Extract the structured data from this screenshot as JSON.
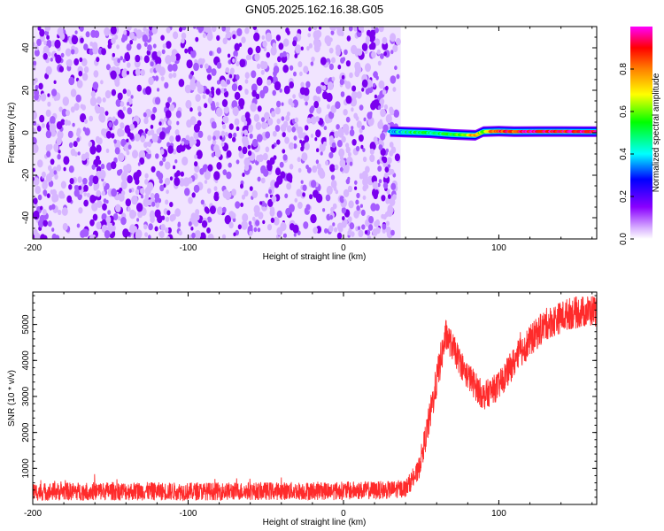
{
  "title": "GN05.2025.162.16.38.G05",
  "chart_data": [
    {
      "type": "heatmap",
      "xlabel": "Height of straight line (km)",
      "ylabel": "Frequency (Hz)",
      "xlim": [
        -200,
        163
      ],
      "ylim": [
        -50,
        50
      ],
      "xticks": [
        -200,
        -100,
        0,
        100
      ],
      "yticks": [
        -40,
        -20,
        0,
        20,
        40
      ],
      "noise_region": {
        "x_range": [
          -200,
          30
        ],
        "y_range": [
          -50,
          50
        ],
        "amplitude_range": [
          0.0,
          0.25
        ]
      },
      "signal_band": {
        "x_range": [
          28,
          163
        ],
        "frequency_hz": 0,
        "points": [
          {
            "x": 30,
            "f": 0.6,
            "amp": 0.35
          },
          {
            "x": 40,
            "f": 0.3,
            "amp": 0.45
          },
          {
            "x": 55,
            "f": 0.0,
            "amp": 0.5
          },
          {
            "x": 70,
            "f": -0.8,
            "amp": 0.55
          },
          {
            "x": 85,
            "f": -1.2,
            "amp": 0.75
          },
          {
            "x": 90,
            "f": 0.5,
            "amp": 0.6
          },
          {
            "x": 100,
            "f": 0.7,
            "amp": 0.9
          },
          {
            "x": 110,
            "f": 0.5,
            "amp": 0.85
          },
          {
            "x": 125,
            "f": 0.6,
            "amp": 0.95
          },
          {
            "x": 140,
            "f": 0.6,
            "amp": 0.9
          },
          {
            "x": 155,
            "f": 0.5,
            "amp": 0.95
          },
          {
            "x": 163,
            "f": 0.5,
            "amp": 0.9
          }
        ]
      },
      "colorbar": {
        "label": "Normalized spectral amplitude",
        "range": [
          0,
          1
        ],
        "ticks": [
          "0.0",
          "0.2",
          "0.4",
          "0.6",
          "0.8"
        ],
        "colors": [
          "#ffffff",
          "#8a00ff",
          "#0000ff",
          "#00ffff",
          "#00ff00",
          "#ffff00",
          "#ff8000",
          "#ff0000",
          "#ff00ff"
        ]
      }
    },
    {
      "type": "line",
      "xlabel": "Height of straight line (km)",
      "ylabel": "SNR (10 * v/v)",
      "xlim": [
        -200,
        163
      ],
      "ylim": [
        0,
        5900
      ],
      "xticks": [
        -200,
        -100,
        0,
        100
      ],
      "yticks": [
        1000,
        2000,
        3000,
        4000,
        5000
      ],
      "color": "#ff2b2b",
      "series": [
        {
          "values_envelope": [
            {
              "x": -200,
              "y": 350,
              "spread": 250
            },
            {
              "x": -150,
              "y": 370,
              "spread": 260
            },
            {
              "x": -100,
              "y": 360,
              "spread": 250
            },
            {
              "x": -50,
              "y": 370,
              "spread": 250
            },
            {
              "x": 0,
              "y": 380,
              "spread": 260
            },
            {
              "x": 30,
              "y": 400,
              "spread": 250
            },
            {
              "x": 40,
              "y": 450,
              "spread": 250
            },
            {
              "x": 48,
              "y": 900,
              "spread": 300
            },
            {
              "x": 55,
              "y": 2300,
              "spread": 450
            },
            {
              "x": 62,
              "y": 3900,
              "spread": 500
            },
            {
              "x": 66,
              "y": 4700,
              "spread": 450
            },
            {
              "x": 70,
              "y": 4400,
              "spread": 400
            },
            {
              "x": 78,
              "y": 3700,
              "spread": 400
            },
            {
              "x": 90,
              "y": 3000,
              "spread": 400
            },
            {
              "x": 100,
              "y": 3300,
              "spread": 400
            },
            {
              "x": 115,
              "y": 4300,
              "spread": 450
            },
            {
              "x": 130,
              "y": 5000,
              "spread": 450
            },
            {
              "x": 145,
              "y": 5300,
              "spread": 450
            },
            {
              "x": 163,
              "y": 5400,
              "spread": 450
            }
          ]
        }
      ]
    }
  ]
}
